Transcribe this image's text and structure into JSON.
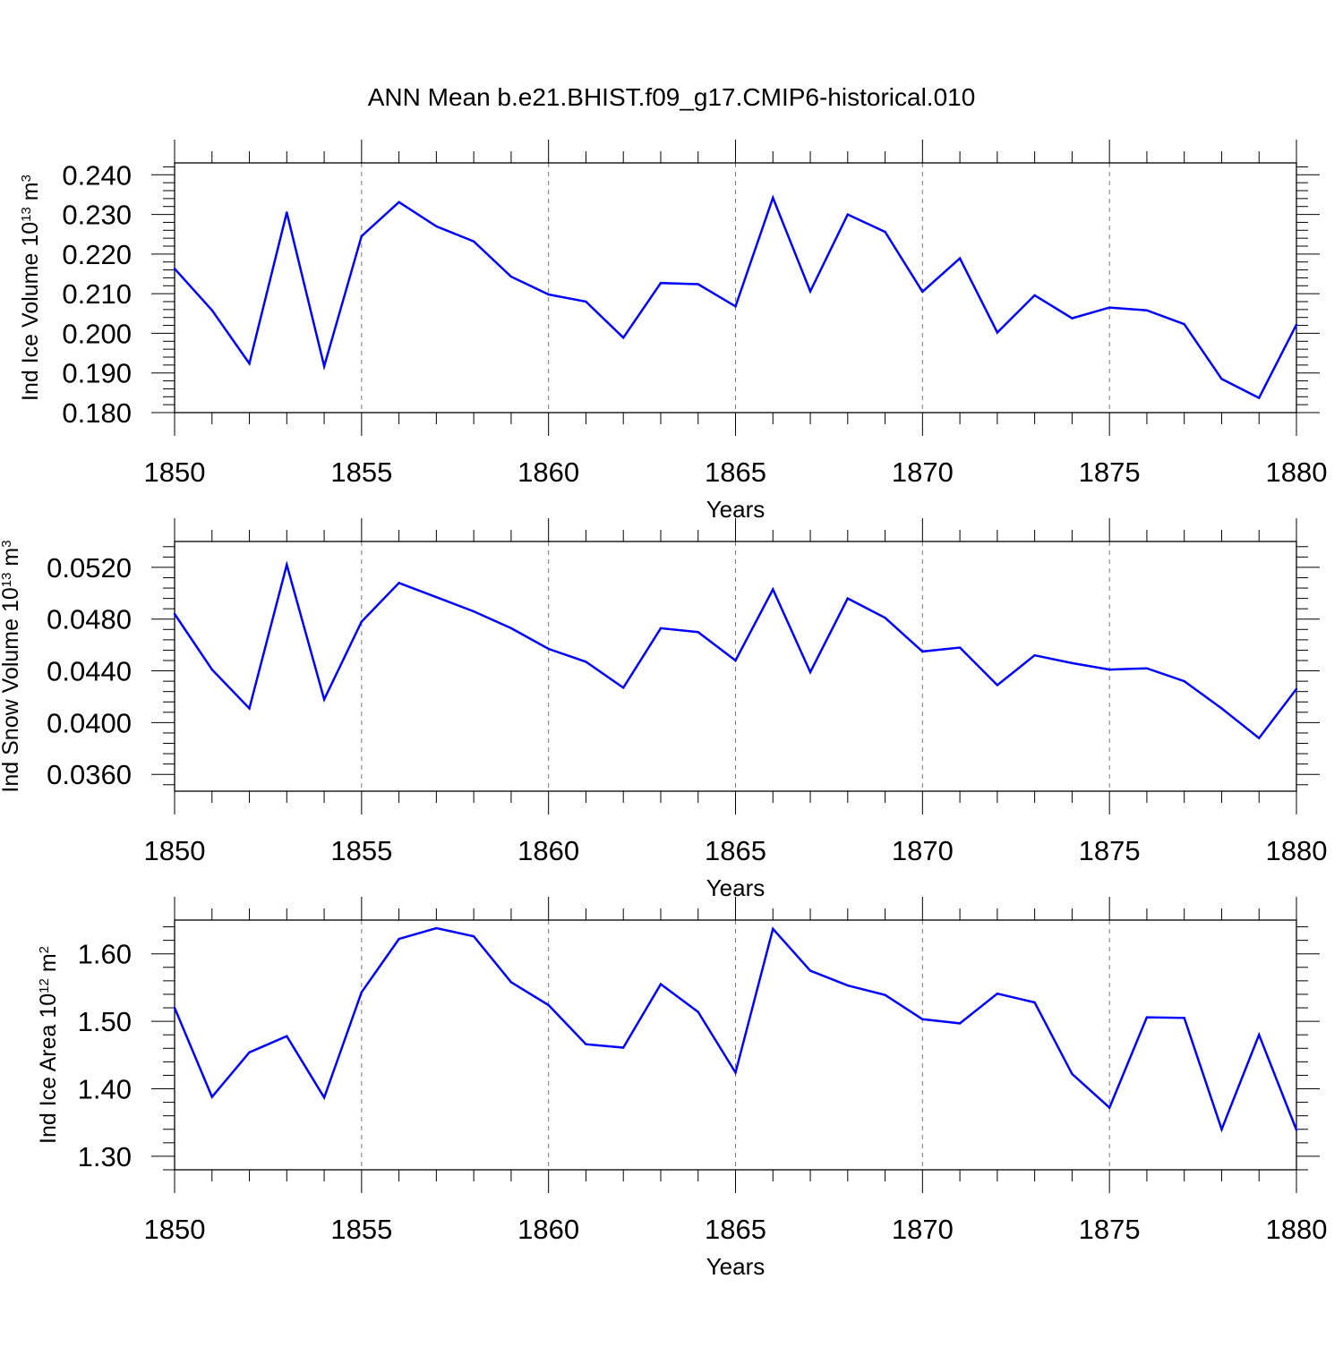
{
  "title": "ANN Mean b.e21.BHIST.f09_g17.CMIP6-historical.010",
  "chart_data": [
    {
      "type": "line",
      "title": "ANN Mean b.e21.BHIST.f09_g17.CMIP6-historical.010",
      "xlabel": "Years",
      "ylabel_main": "Ind Ice Volume 10",
      "ylabel_exp": "13",
      "ylabel_unit": " m",
      "ylabel_unit_exp": "3",
      "xlim": [
        1850,
        1880
      ],
      "ylim": [
        0.18,
        0.243
      ],
      "xticks": [
        1850,
        1855,
        1860,
        1865,
        1870,
        1875,
        1880
      ],
      "xtick_labels": [
        "1850",
        "1855",
        "1860",
        "1865",
        "1870",
        "1875",
        "1880"
      ],
      "yticks": [
        0.18,
        0.19,
        0.2,
        0.21,
        0.22,
        0.23,
        0.24
      ],
      "ytick_labels": [
        "0.180",
        "0.190",
        "0.200",
        "0.210",
        "0.220",
        "0.230",
        "0.240"
      ],
      "series_color": "#0000ff",
      "x": [
        1850,
        1851,
        1852,
        1853,
        1854,
        1855,
        1856,
        1857,
        1858,
        1859,
        1860,
        1861,
        1862,
        1863,
        1864,
        1865,
        1866,
        1867,
        1868,
        1869,
        1870,
        1871,
        1872,
        1873,
        1874,
        1875,
        1876,
        1877,
        1878,
        1879,
        1880
      ],
      "values": [
        0.2163,
        0.2058,
        0.1924,
        0.2305,
        0.1917,
        0.2245,
        0.2331,
        0.227,
        0.2232,
        0.2143,
        0.2098,
        0.208,
        0.1989,
        0.2127,
        0.2124,
        0.2068,
        0.2342,
        0.2106,
        0.23,
        0.2256,
        0.2105,
        0.2189,
        0.2002,
        0.2096,
        0.2038,
        0.2065,
        0.2058,
        0.2023,
        0.1885,
        0.1837,
        0.2022
      ]
    },
    {
      "type": "line",
      "xlabel": "Years",
      "ylabel_main": "Ind Snow Volume 10",
      "ylabel_exp": "13",
      "ylabel_unit": " m",
      "ylabel_unit_exp": "3",
      "xlim": [
        1850,
        1880
      ],
      "ylim": [
        0.0347,
        0.054
      ],
      "xticks": [
        1850,
        1855,
        1860,
        1865,
        1870,
        1875,
        1880
      ],
      "xtick_labels": [
        "1850",
        "1855",
        "1860",
        "1865",
        "1870",
        "1875",
        "1880"
      ],
      "yticks": [
        0.036,
        0.04,
        0.044,
        0.048,
        0.052
      ],
      "ytick_labels": [
        "0.0360",
        "0.0400",
        "0.0440",
        "0.0480",
        "0.0520"
      ],
      "series_color": "#0000ff",
      "x": [
        1850,
        1851,
        1852,
        1853,
        1854,
        1855,
        1856,
        1857,
        1858,
        1859,
        1860,
        1861,
        1862,
        1863,
        1864,
        1865,
        1866,
        1867,
        1868,
        1869,
        1870,
        1871,
        1872,
        1873,
        1874,
        1875,
        1876,
        1877,
        1878,
        1879,
        1880
      ],
      "values": [
        0.0484,
        0.0441,
        0.0411,
        0.0522,
        0.0418,
        0.0478,
        0.0508,
        0.0497,
        0.0486,
        0.0473,
        0.0457,
        0.0447,
        0.0427,
        0.0473,
        0.047,
        0.0448,
        0.0503,
        0.0439,
        0.0496,
        0.0481,
        0.0455,
        0.0458,
        0.0429,
        0.0452,
        0.0446,
        0.0441,
        0.0442,
        0.0432,
        0.0411,
        0.0388,
        0.0426
      ]
    },
    {
      "type": "line",
      "xlabel": "Years",
      "ylabel_main": "Ind Ice Area 10",
      "ylabel_exp": "12",
      "ylabel_unit": " m",
      "ylabel_unit_exp": "2",
      "xlim": [
        1850,
        1880
      ],
      "ylim": [
        1.28,
        1.65
      ],
      "xticks": [
        1850,
        1855,
        1860,
        1865,
        1870,
        1875,
        1880
      ],
      "xtick_labels": [
        "1850",
        "1855",
        "1860",
        "1865",
        "1870",
        "1875",
        "1880"
      ],
      "yticks": [
        1.3,
        1.4,
        1.5,
        1.6
      ],
      "ytick_labels": [
        "1.30",
        "1.40",
        "1.50",
        "1.60"
      ],
      "series_color": "#0000ff",
      "x": [
        1850,
        1851,
        1852,
        1853,
        1854,
        1855,
        1856,
        1857,
        1858,
        1859,
        1860,
        1861,
        1862,
        1863,
        1864,
        1865,
        1866,
        1867,
        1868,
        1869,
        1870,
        1871,
        1872,
        1873,
        1874,
        1875,
        1876,
        1877,
        1878,
        1879,
        1880
      ],
      "values": [
        1.52,
        1.388,
        1.454,
        1.478,
        1.387,
        1.543,
        1.622,
        1.638,
        1.626,
        1.558,
        1.524,
        1.466,
        1.461,
        1.555,
        1.514,
        1.424,
        1.637,
        1.575,
        1.553,
        1.539,
        1.503,
        1.497,
        1.541,
        1.528,
        1.422,
        1.372,
        1.506,
        1.505,
        1.34,
        1.48,
        1.339
      ]
    }
  ]
}
